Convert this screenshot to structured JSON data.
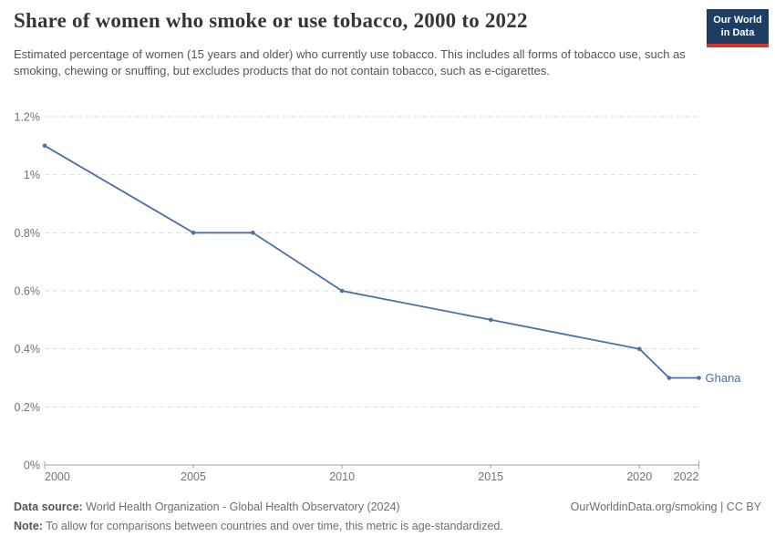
{
  "header": {
    "title": "Share of women who smoke or use tobacco, 2000 to 2022",
    "subtitle": "Estimated percentage of women (15 years and older) who currently use tobacco. This includes all forms of tobacco use, such as smoking, chewing or snuffing, but excludes products that do not contain tobacco, such as e-cigarettes.",
    "logo": {
      "line1": "Our World",
      "line2": "in Data",
      "bg_color": "#1d3d63",
      "stripe_color": "#d3342c"
    }
  },
  "chart_data": {
    "type": "line",
    "title": "Share of women who smoke or use tobacco, 2000 to 2022",
    "xlabel": "",
    "ylabel": "",
    "unit": "%",
    "xlim": [
      2000,
      2022
    ],
    "ylim": [
      0,
      1.2
    ],
    "x_ticks": [
      2000,
      2005,
      2010,
      2015,
      2020,
      2022
    ],
    "x_tick_labels": [
      "2000",
      "2005",
      "2010",
      "2015",
      "2020",
      "2022"
    ],
    "y_ticks": [
      0,
      0.2,
      0.4,
      0.6,
      0.8,
      1.0,
      1.2
    ],
    "y_tick_labels": [
      "0%",
      "0.2%",
      "0.4%",
      "0.6%",
      "0.8%",
      "1%",
      "1.2%"
    ],
    "grid": "horizontal-dashed",
    "legend_position": "end-of-line",
    "colors": {
      "grid": "#dedede",
      "axis": "#a1a1a1",
      "tick_text": "#737373"
    },
    "series": [
      {
        "name": "Ghana",
        "color": "#4d6fa8",
        "points": [
          [
            2000,
            1.1
          ],
          [
            2005,
            0.8
          ],
          [
            2007,
            0.8
          ],
          [
            2010,
            0.6
          ],
          [
            2015,
            0.5
          ],
          [
            2020,
            0.4
          ],
          [
            2021,
            0.3
          ],
          [
            2022,
            0.3
          ]
        ]
      }
    ]
  },
  "footer": {
    "data_source_label": "Data source:",
    "data_source_text": " World Health Organization - Global Health Observatory (2024)",
    "note_label": "Note:",
    "note_text": " To allow for comparisons between countries and over time, this metric is age-standardized.",
    "right_text": "OurWorldinData.org/smoking | CC BY"
  }
}
